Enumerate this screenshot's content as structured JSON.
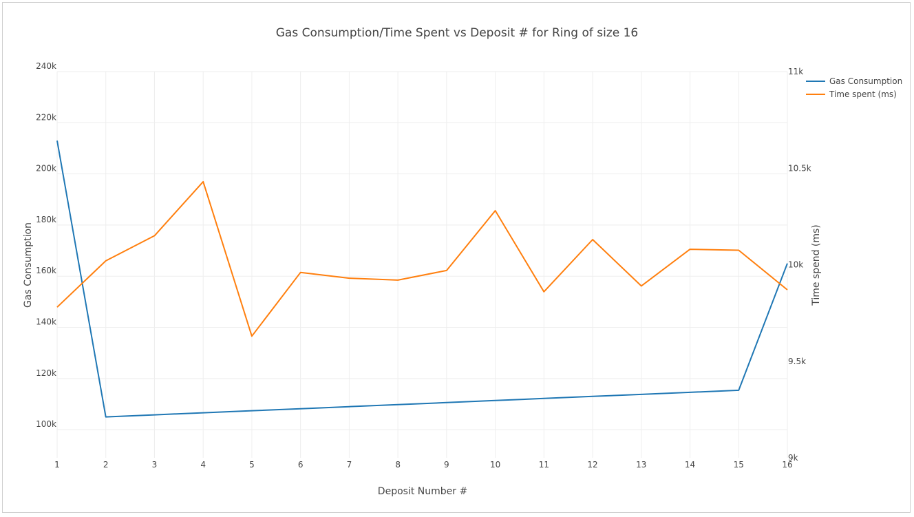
{
  "chart_data": {
    "type": "line",
    "title": "Gas Consumption/Time Spent vs Deposit # for Ring of size 16",
    "xlabel": "Deposit Number #",
    "ylabel": "Gas Consumption",
    "y2label": "Time spend (ms)",
    "x": [
      1,
      2,
      3,
      4,
      5,
      6,
      7,
      8,
      9,
      10,
      11,
      12,
      13,
      14,
      15,
      16
    ],
    "xlim": [
      1,
      16
    ],
    "ylim": [
      89000,
      240000
    ],
    "y2lim": [
      9000,
      11000
    ],
    "y_ticks": [
      100000,
      120000,
      140000,
      160000,
      180000,
      200000,
      220000,
      240000
    ],
    "y_tick_labels": [
      "100k",
      "120k",
      "140k",
      "160k",
      "180k",
      "200k",
      "220k",
      "240k"
    ],
    "y2_ticks": [
      9000,
      9500,
      10000,
      10500,
      11000
    ],
    "y2_tick_labels": [
      "9k",
      "9.5k",
      "10k",
      "10.5k",
      "11k"
    ],
    "grid": true,
    "legend_position": "top-right",
    "series": [
      {
        "name": "Gas Consumption",
        "axis": "y",
        "color": "#1f77b4",
        "values": [
          213000,
          105000,
          105800,
          106600,
          107400,
          108200,
          109000,
          109800,
          110600,
          111400,
          112200,
          113000,
          113800,
          114600,
          115400,
          165000
        ]
      },
      {
        "name": "Time spent (ms)",
        "axis": "y2",
        "color": "#ff7f0e",
        "values": [
          9780,
          10020,
          10150,
          10430,
          9630,
          9960,
          9930,
          9920,
          9970,
          10280,
          9860,
          10130,
          9890,
          10080,
          10075,
          9870
        ]
      }
    ]
  }
}
